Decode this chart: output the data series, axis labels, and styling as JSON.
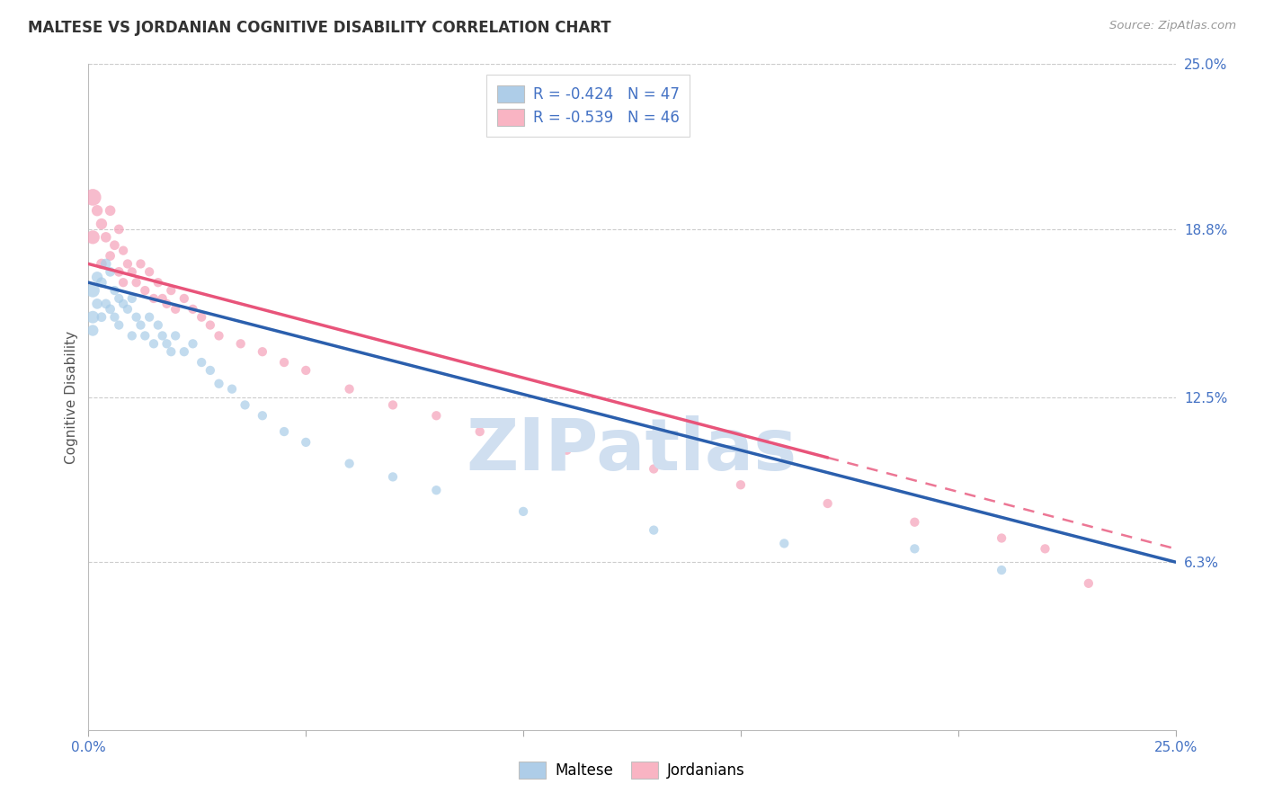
{
  "title": "MALTESE VS JORDANIAN COGNITIVE DISABILITY CORRELATION CHART",
  "source": "Source: ZipAtlas.com",
  "ylabel": "Cognitive Disability",
  "xlim": [
    0.0,
    0.25
  ],
  "ylim": [
    0.0,
    0.25
  ],
  "ytick_labels_right": [
    "25.0%",
    "18.8%",
    "12.5%",
    "6.3%"
  ],
  "ytick_positions_right": [
    0.25,
    0.188,
    0.125,
    0.063
  ],
  "legend_label1": "R = -0.424   N = 47",
  "legend_label2": "R = -0.539   N = 46",
  "legend_color1": "#aecde8",
  "legend_color2": "#f9b4c3",
  "trendline1_color": "#2b5fad",
  "trendline2_color": "#e8547a",
  "scatter1_color": "#a8cce8",
  "scatter2_color": "#f5a0b8",
  "watermark_text": "ZIPatlas",
  "watermark_color": "#d0dff0",
  "grid_color": "#cccccc",
  "bg_color": "#ffffff",
  "maltese_x": [
    0.001,
    0.001,
    0.001,
    0.002,
    0.002,
    0.003,
    0.003,
    0.004,
    0.004,
    0.005,
    0.005,
    0.006,
    0.006,
    0.007,
    0.007,
    0.008,
    0.009,
    0.01,
    0.01,
    0.011,
    0.012,
    0.013,
    0.014,
    0.015,
    0.016,
    0.017,
    0.018,
    0.019,
    0.02,
    0.022,
    0.024,
    0.026,
    0.028,
    0.03,
    0.033,
    0.036,
    0.04,
    0.045,
    0.05,
    0.06,
    0.07,
    0.08,
    0.1,
    0.13,
    0.16,
    0.19,
    0.21
  ],
  "maltese_y": [
    0.165,
    0.155,
    0.15,
    0.17,
    0.16,
    0.168,
    0.155,
    0.175,
    0.16,
    0.172,
    0.158,
    0.165,
    0.155,
    0.162,
    0.152,
    0.16,
    0.158,
    0.162,
    0.148,
    0.155,
    0.152,
    0.148,
    0.155,
    0.145,
    0.152,
    0.148,
    0.145,
    0.142,
    0.148,
    0.142,
    0.145,
    0.138,
    0.135,
    0.13,
    0.128,
    0.122,
    0.118,
    0.112,
    0.108,
    0.1,
    0.095,
    0.09,
    0.082,
    0.075,
    0.07,
    0.068,
    0.06
  ],
  "maltese_sizes": [
    120,
    100,
    80,
    80,
    70,
    70,
    60,
    70,
    60,
    60,
    60,
    55,
    55,
    55,
    55,
    55,
    55,
    55,
    55,
    55,
    55,
    55,
    55,
    55,
    55,
    55,
    55,
    55,
    55,
    55,
    55,
    55,
    55,
    55,
    55,
    55,
    55,
    55,
    55,
    55,
    55,
    55,
    55,
    55,
    55,
    55,
    55
  ],
  "jordanian_x": [
    0.001,
    0.001,
    0.002,
    0.003,
    0.003,
    0.004,
    0.005,
    0.005,
    0.006,
    0.007,
    0.007,
    0.008,
    0.008,
    0.009,
    0.01,
    0.011,
    0.012,
    0.013,
    0.014,
    0.015,
    0.016,
    0.017,
    0.018,
    0.019,
    0.02,
    0.022,
    0.024,
    0.026,
    0.028,
    0.03,
    0.035,
    0.04,
    0.045,
    0.05,
    0.06,
    0.07,
    0.08,
    0.09,
    0.11,
    0.13,
    0.15,
    0.17,
    0.19,
    0.21,
    0.22,
    0.23
  ],
  "jordanian_y": [
    0.2,
    0.185,
    0.195,
    0.19,
    0.175,
    0.185,
    0.195,
    0.178,
    0.182,
    0.188,
    0.172,
    0.18,
    0.168,
    0.175,
    0.172,
    0.168,
    0.175,
    0.165,
    0.172,
    0.162,
    0.168,
    0.162,
    0.16,
    0.165,
    0.158,
    0.162,
    0.158,
    0.155,
    0.152,
    0.148,
    0.145,
    0.142,
    0.138,
    0.135,
    0.128,
    0.122,
    0.118,
    0.112,
    0.105,
    0.098,
    0.092,
    0.085,
    0.078,
    0.072,
    0.068,
    0.055
  ],
  "jordanian_sizes": [
    180,
    120,
    80,
    80,
    70,
    70,
    70,
    60,
    60,
    60,
    60,
    55,
    55,
    55,
    55,
    55,
    55,
    55,
    55,
    55,
    55,
    55,
    55,
    55,
    55,
    55,
    55,
    55,
    55,
    55,
    55,
    55,
    55,
    55,
    55,
    55,
    55,
    55,
    55,
    55,
    55,
    55,
    55,
    55,
    55,
    55
  ],
  "trendline1_x0": 0.0,
  "trendline1_y0": 0.168,
  "trendline1_x1": 0.25,
  "trendline1_y1": 0.063,
  "trendline2_x0": 0.0,
  "trendline2_y0": 0.175,
  "trendline2_x1": 0.25,
  "trendline2_y1": 0.068,
  "trendline2_solid_end": 0.17
}
